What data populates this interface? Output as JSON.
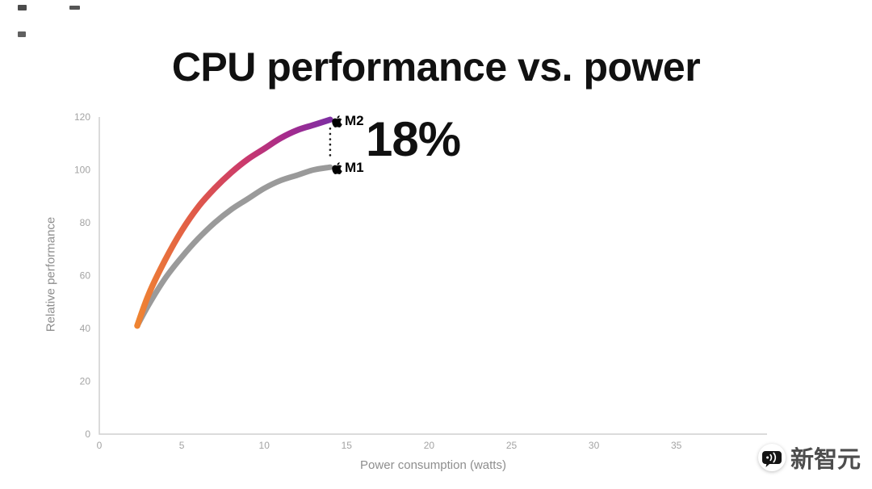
{
  "title": "CPU performance vs. power",
  "labels": {
    "m2": "M2",
    "m1": "M1",
    "delta": "18%"
  },
  "watermark": {
    "text": "新智元",
    "icon": "chat-bubble-voice-icon"
  },
  "colors": {
    "title_text": "#111111",
    "annotation_text": "#101010",
    "axis_line": "#cfcfcf",
    "tick_text": "#a3a3a3",
    "axis_label_text": "#8e8e8e",
    "dotted_line": "#1d1d1d",
    "m1_line": "#9a9a9a",
    "m2_gradient": [
      "#EF8432",
      "#E05A49",
      "#CB3A6C",
      "#A42B8E",
      "#7E2FA2"
    ]
  },
  "chart_data": {
    "type": "line",
    "title": "CPU performance vs. power",
    "xlabel": "Power consumption (watts)",
    "ylabel": "Relative performance",
    "xlim": [
      0,
      40.5
    ],
    "ylim": [
      0,
      120
    ],
    "x_ticks": [
      0,
      5,
      10,
      15,
      20,
      25,
      30,
      35
    ],
    "y_ticks": [
      0,
      20,
      40,
      60,
      80,
      100,
      120
    ],
    "grid": false,
    "legend_position": "end-of-line-labels",
    "series": [
      {
        "name": "M1",
        "color": "#9a9a9a",
        "x": [
          2.3,
          3,
          4,
          5,
          6,
          7,
          8,
          9,
          10,
          11,
          12,
          13,
          14
        ],
        "y": [
          41,
          49,
          59,
          67,
          74,
          80,
          85,
          89,
          93,
          96,
          98,
          100,
          101
        ]
      },
      {
        "name": "M2",
        "gradient": [
          "#EF8432",
          "#E05A49",
          "#CB3A6C",
          "#A42B8E",
          "#7E2FA2"
        ],
        "x": [
          2.3,
          3,
          4,
          5,
          6,
          7,
          8,
          9,
          10,
          11,
          12,
          13,
          14
        ],
        "y": [
          41,
          53,
          66,
          77,
          86,
          93,
          99,
          104,
          108,
          112,
          115,
          117,
          119
        ]
      }
    ],
    "annotation": {
      "label": "18%"
    }
  }
}
